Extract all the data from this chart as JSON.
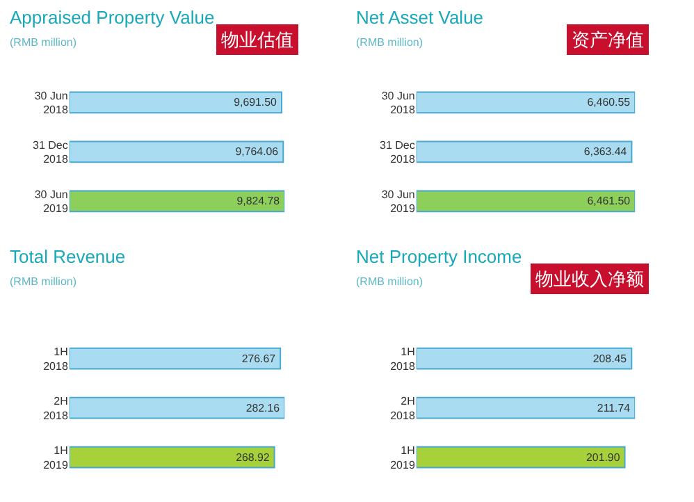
{
  "chart_data": [
    {
      "type": "bar",
      "orientation": "horizontal",
      "title": "Appraised Property Value",
      "subtitle": "(RMB million)",
      "annotations": [
        "物业估值"
      ],
      "categories": [
        "30 Jun\n2018",
        "31 Dec\n2018",
        "30 Jun\n2019"
      ],
      "values": [
        9691.5,
        9764.06,
        9824.78
      ],
      "value_labels": [
        "9,691.50",
        "9,764.06",
        "9,824.78"
      ],
      "colors": [
        "#a9dcf0",
        "#a9dcf0",
        "#8ccf5a"
      ]
    },
    {
      "type": "bar",
      "orientation": "horizontal",
      "title": "Net Asset Value",
      "subtitle": "(RMB million)",
      "annotations": [
        "资产净值"
      ],
      "categories": [
        "30 Jun\n2018",
        "31 Dec\n2018",
        "30 Jun\n2019"
      ],
      "values": [
        6460.55,
        6363.44,
        6461.5
      ],
      "value_labels": [
        "6,460.55",
        "6,363.44",
        "6,461.50"
      ],
      "colors": [
        "#a9dcf0",
        "#a9dcf0",
        "#8ccf5a"
      ]
    },
    {
      "type": "bar",
      "orientation": "horizontal",
      "title": "Total Revenue",
      "subtitle": "(RMB million)",
      "categories": [
        "1H\n2018",
        "2H\n2018",
        "1H\n2019"
      ],
      "values": [
        276.67,
        282.16,
        268.92
      ],
      "value_labels": [
        "276.67",
        "282.16",
        "268.92"
      ],
      "colors": [
        "#a9dcf0",
        "#a9dcf0",
        "#a6d13a"
      ]
    },
    {
      "type": "bar",
      "orientation": "horizontal",
      "title": "Net Property Income",
      "subtitle": "(RMB million)",
      "annotations": [
        "物业收入净额"
      ],
      "categories": [
        "1H\n2018",
        "2H\n2018",
        "1H\n2019"
      ],
      "values": [
        208.45,
        211.74,
        201.9
      ],
      "value_labels": [
        "208.45",
        "211.74",
        "201.90"
      ],
      "colors": [
        "#a9dcf0",
        "#a9dcf0",
        "#a6d13a"
      ]
    }
  ]
}
